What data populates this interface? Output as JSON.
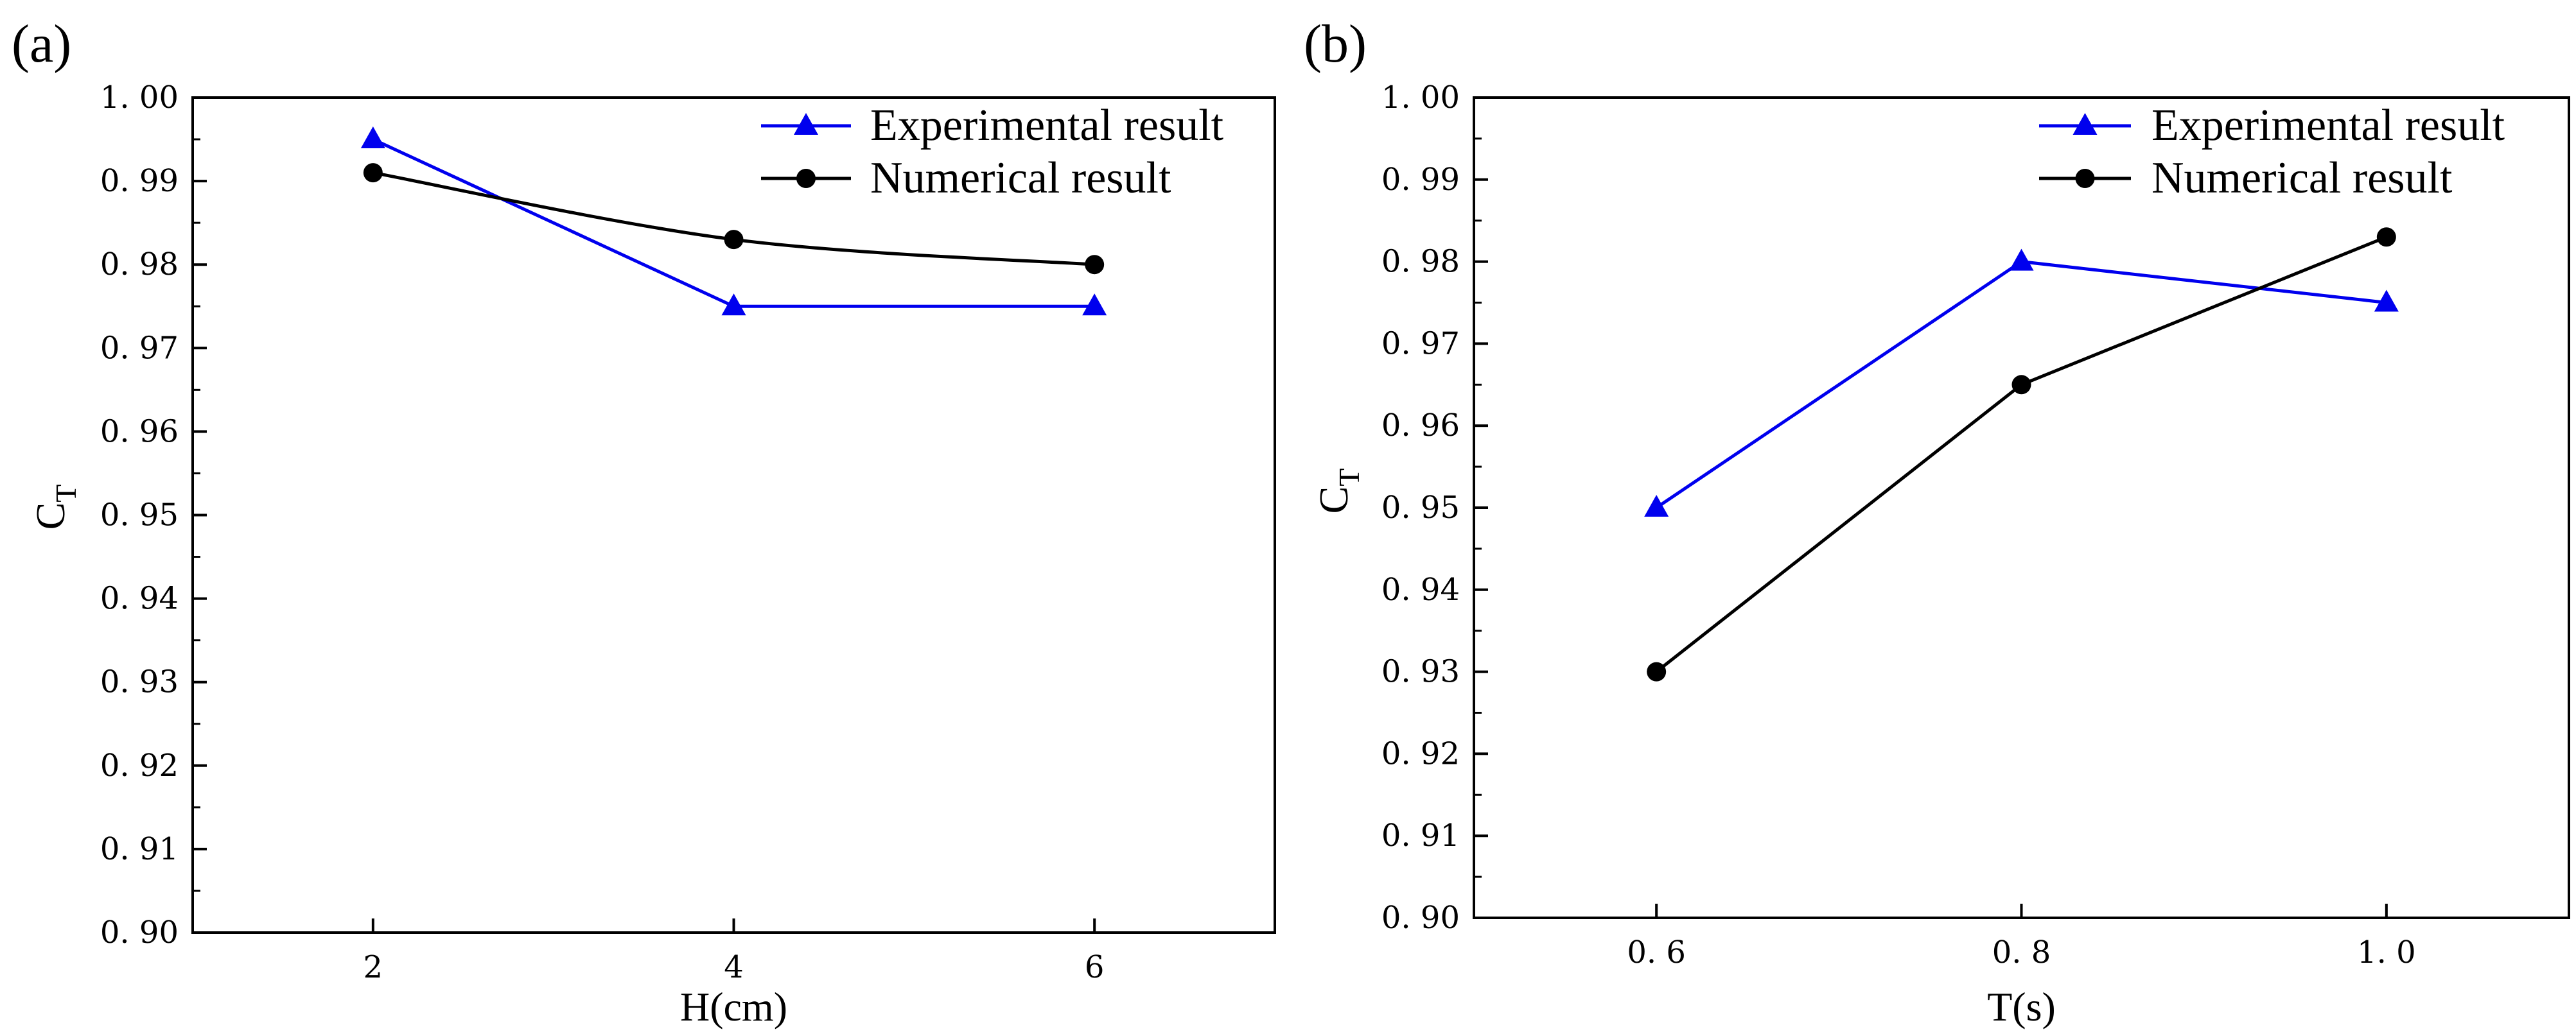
{
  "figure": {
    "panels": [
      {
        "label": "(a)",
        "ylabel_main": "C",
        "ylabel_sub": "T"
      },
      {
        "label": "(b)",
        "ylabel_main": "C",
        "ylabel_sub": "T"
      }
    ]
  },
  "colors": {
    "experimental": "#0000ee",
    "numerical": "#000000",
    "axis": "#000000"
  },
  "chart_data": [
    {
      "type": "line",
      "panel": "(a)",
      "xlabel": "H(cm)",
      "ylabel": "CT",
      "x": [
        2,
        4,
        6
      ],
      "x_tick_labels": [
        "2",
        "4",
        "6"
      ],
      "xlim": [
        1,
        7
      ],
      "ylim": [
        0.9,
        1.0
      ],
      "y_ticks": [
        0.9,
        0.91,
        0.92,
        0.93,
        0.94,
        0.95,
        0.96,
        0.97,
        0.98,
        0.99,
        1.0
      ],
      "y_tick_labels": [
        "0. 90",
        "0. 91",
        "0. 92",
        "0. 93",
        "0. 94",
        "0. 95",
        "0. 96",
        "0. 97",
        "0. 98",
        "0. 99",
        "1. 00"
      ],
      "legend": "top-right",
      "series": [
        {
          "name": "Experimental result",
          "marker": "triangle",
          "smooth": false,
          "values": [
            0.995,
            0.975,
            0.975
          ]
        },
        {
          "name": "Numerical result",
          "marker": "circle",
          "smooth": true,
          "values": [
            0.991,
            0.983,
            0.98
          ]
        }
      ]
    },
    {
      "type": "line",
      "panel": "(b)",
      "xlabel": "T(s)",
      "ylabel": "CT",
      "x": [
        0.6,
        0.8,
        1.0
      ],
      "x_tick_labels": [
        "0. 6",
        "0. 8",
        "1. 0"
      ],
      "xlim": [
        0.5,
        1.1
      ],
      "ylim": [
        0.9,
        1.0
      ],
      "y_ticks": [
        0.9,
        0.91,
        0.92,
        0.93,
        0.94,
        0.95,
        0.96,
        0.97,
        0.98,
        0.99,
        1.0
      ],
      "y_tick_labels": [
        "0. 90",
        "0. 91",
        "0. 92",
        "0. 93",
        "0. 94",
        "0. 95",
        "0. 96",
        "0. 97",
        "0. 98",
        "0. 99",
        "1. 00"
      ],
      "legend": "top-right",
      "series": [
        {
          "name": "Experimental result",
          "marker": "triangle",
          "smooth": false,
          "values": [
            0.95,
            0.98,
            0.975
          ]
        },
        {
          "name": "Numerical result",
          "marker": "circle",
          "smooth": false,
          "values": [
            0.93,
            0.965,
            0.983
          ]
        }
      ]
    }
  ]
}
